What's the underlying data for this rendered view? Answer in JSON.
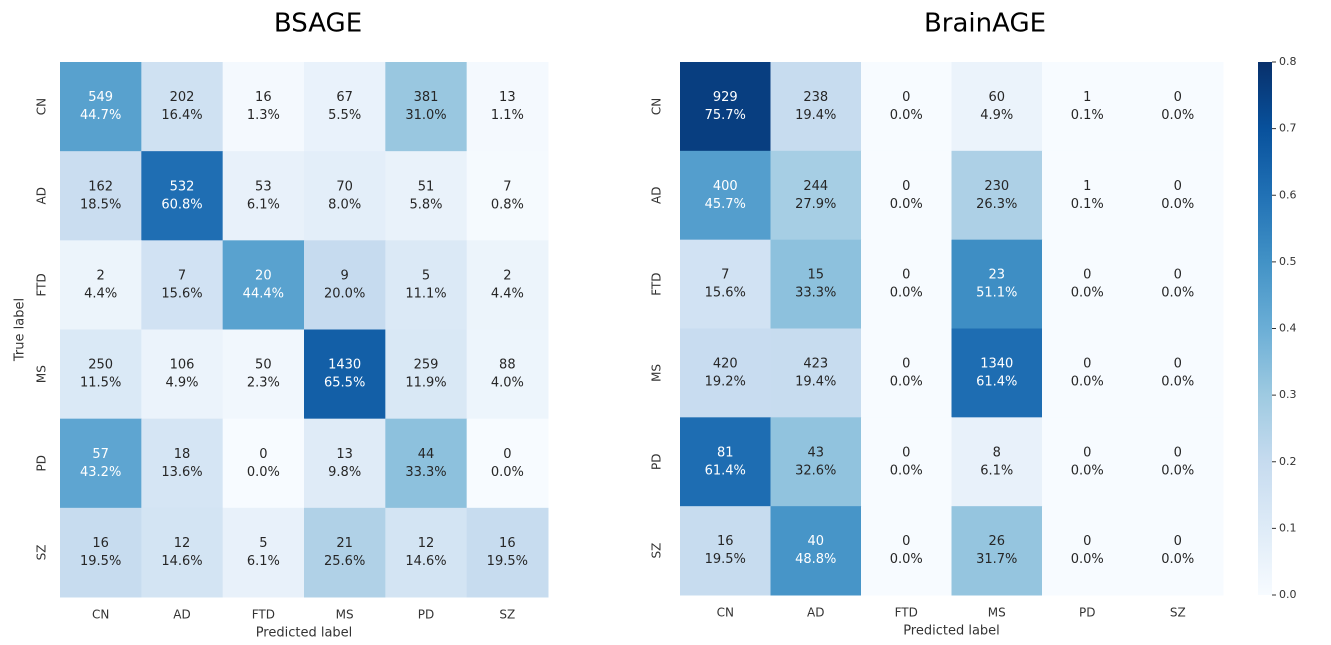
{
  "chart_data": [
    {
      "type": "heatmap",
      "title": "BSAGE",
      "xlabel": "Predicted label",
      "ylabel": "True label",
      "x_categories": [
        "CN",
        "AD",
        "FTD",
        "MS",
        "PD",
        "SZ"
      ],
      "y_categories": [
        "CN",
        "AD",
        "FTD",
        "MS",
        "PD",
        "SZ"
      ],
      "counts": [
        [
          549,
          202,
          16,
          67,
          381,
          13
        ],
        [
          162,
          532,
          53,
          70,
          51,
          7
        ],
        [
          2,
          7,
          20,
          9,
          5,
          2
        ],
        [
          250,
          106,
          50,
          1430,
          259,
          88
        ],
        [
          57,
          18,
          0,
          13,
          44,
          0
        ],
        [
          16,
          12,
          5,
          21,
          12,
          16
        ]
      ],
      "values": [
        [
          0.447,
          0.164,
          0.013,
          0.055,
          0.31,
          0.011
        ],
        [
          0.185,
          0.608,
          0.061,
          0.08,
          0.058,
          0.008
        ],
        [
          0.044,
          0.156,
          0.444,
          0.2,
          0.111,
          0.044
        ],
        [
          0.115,
          0.049,
          0.023,
          0.655,
          0.119,
          0.04
        ],
        [
          0.432,
          0.136,
          0,
          0.098,
          0.333,
          0
        ],
        [
          0.195,
          0.146,
          0.061,
          0.256,
          0.146,
          0.195
        ]
      ],
      "value_labels": [
        [
          "44.7%",
          "16.4%",
          "1.3%",
          "5.5%",
          "31.0%",
          "1.1%"
        ],
        [
          "18.5%",
          "60.8%",
          "6.1%",
          "8.0%",
          "5.8%",
          "0.8%"
        ],
        [
          "4.4%",
          "15.6%",
          "44.4%",
          "20.0%",
          "11.1%",
          "4.4%"
        ],
        [
          "11.5%",
          "4.9%",
          "2.3%",
          "65.5%",
          "11.9%",
          "4.0%"
        ],
        [
          "43.2%",
          "13.6%",
          "0.0%",
          "9.8%",
          "33.3%",
          "0.0%"
        ],
        [
          "19.5%",
          "14.6%",
          "6.1%",
          "25.6%",
          "14.6%",
          "19.5%"
        ]
      ],
      "clim": [
        0,
        0.8
      ],
      "colormap": [
        "#f7fbff",
        "#deebf7",
        "#c6dbef",
        "#9ecae1",
        "#6baed6",
        "#4292c6",
        "#2171b5",
        "#08519c",
        "#08306b"
      ]
    },
    {
      "type": "heatmap",
      "title": "BrainAGE",
      "xlabel": "Predicted label",
      "x_categories": [
        "CN",
        "AD",
        "FTD",
        "MS",
        "PD",
        "SZ"
      ],
      "y_categories": [
        "CN",
        "AD",
        "FTD",
        "MS",
        "PD",
        "SZ"
      ],
      "counts": [
        [
          929,
          238,
          0,
          60,
          1,
          0
        ],
        [
          400,
          244,
          0,
          230,
          1,
          0
        ],
        [
          7,
          15,
          0,
          23,
          0,
          0
        ],
        [
          420,
          423,
          0,
          1340,
          0,
          0
        ],
        [
          81,
          43,
          0,
          8,
          0,
          0
        ],
        [
          16,
          40,
          0,
          26,
          0,
          0
        ]
      ],
      "values": [
        [
          0.757,
          0.194,
          0,
          0.049,
          0.001,
          0
        ],
        [
          0.457,
          0.279,
          0,
          0.263,
          0.001,
          0
        ],
        [
          0.156,
          0.333,
          0,
          0.511,
          0,
          0
        ],
        [
          0.192,
          0.194,
          0,
          0.614,
          0,
          0
        ],
        [
          0.614,
          0.326,
          0,
          0.061,
          0,
          0
        ],
        [
          0.195,
          0.488,
          0,
          0.317,
          0,
          0
        ]
      ],
      "value_labels": [
        [
          "75.7%",
          "19.4%",
          "0.0%",
          "4.9%",
          "0.1%",
          "0.0%"
        ],
        [
          "45.7%",
          "27.9%",
          "0.0%",
          "26.3%",
          "0.1%",
          "0.0%"
        ],
        [
          "15.6%",
          "33.3%",
          "0.0%",
          "51.1%",
          "0.0%",
          "0.0%"
        ],
        [
          "19.2%",
          "19.4%",
          "0.0%",
          "61.4%",
          "0.0%",
          "0.0%"
        ],
        [
          "61.4%",
          "32.6%",
          "0.0%",
          "6.1%",
          "0.0%",
          "0.0%"
        ],
        [
          "19.5%",
          "48.8%",
          "0.0%",
          "31.7%",
          "0.0%",
          "0.0%"
        ]
      ],
      "clim": [
        0,
        0.8
      ],
      "colormap": [
        "#f7fbff",
        "#deebf7",
        "#c6dbef",
        "#9ecae1",
        "#6baed6",
        "#4292c6",
        "#2171b5",
        "#08519c",
        "#08306b"
      ],
      "colorbar_ticks": [
        {
          "value": 0,
          "label": "0.0"
        },
        {
          "value": 0.1,
          "label": "0.1"
        },
        {
          "value": 0.2,
          "label": "0.2"
        },
        {
          "value": 0.3,
          "label": "0.3"
        },
        {
          "value": 0.4,
          "label": "0.4"
        },
        {
          "value": 0.5,
          "label": "0.5"
        },
        {
          "value": 0.6,
          "label": "0.6"
        },
        {
          "value": 0.7,
          "label": "0.7"
        },
        {
          "value": 0.8,
          "label": "0.8"
        }
      ]
    }
  ]
}
